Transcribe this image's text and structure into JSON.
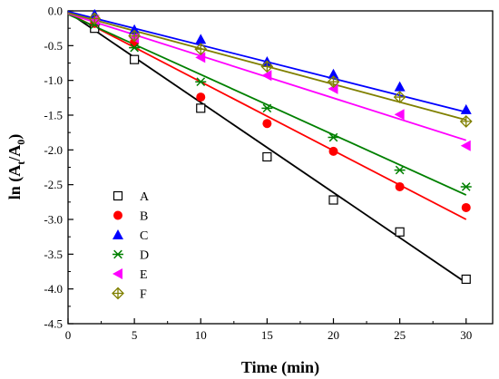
{
  "chart_data": {
    "type": "scatter",
    "xlabel": "Time (min)",
    "ylabel_parts": {
      "prefix": "ln (A",
      "sub1": "t",
      "mid": "/A",
      "sub2": "0",
      "suffix": ")"
    },
    "xlim": [
      0,
      32
    ],
    "ylim": [
      -4.5,
      0
    ],
    "xticks": [
      0,
      5,
      10,
      15,
      20,
      25,
      30
    ],
    "yticks": [
      0.0,
      -0.5,
      -1.0,
      -1.5,
      -2.0,
      -2.5,
      -3.0,
      -3.5,
      -4.0,
      -4.5
    ],
    "ytick_labels": [
      "0.0",
      "-0.5",
      "-1.0",
      "-1.5",
      "-2.0",
      "-2.5",
      "-3.0",
      "-3.5",
      "-4.0",
      "-4.5"
    ],
    "grid": false,
    "legend_position": "lower-left",
    "x": [
      0,
      2,
      5,
      10,
      15,
      20,
      25,
      30
    ],
    "series": [
      {
        "name": "A",
        "marker": "square-open",
        "color": "#000000",
        "values": [
          0,
          -0.25,
          -0.7,
          -1.4,
          -2.1,
          -2.72,
          -3.18,
          -3.86
        ],
        "fit": {
          "intercept": -0.02,
          "slope": -0.1297
        }
      },
      {
        "name": "B",
        "marker": "circle",
        "color": "#ff0000",
        "values": [
          0,
          -0.18,
          -0.45,
          -1.24,
          -1.62,
          -2.02,
          -2.53,
          -2.83
        ],
        "fit": {
          "intercept": -0.03,
          "slope": -0.099
        }
      },
      {
        "name": "C",
        "marker": "triangle-up",
        "color": "#0000ff",
        "values": [
          0,
          -0.05,
          -0.27,
          -0.41,
          -0.73,
          -0.91,
          -1.09,
          -1.42
        ],
        "fit": {
          "intercept": -0.01,
          "slope": -0.0482
        }
      },
      {
        "name": "D",
        "marker": "asterisk",
        "color": "#008000",
        "values": [
          0,
          -0.2,
          -0.53,
          -1.02,
          -1.4,
          -1.82,
          -2.29,
          -2.53
        ],
        "fit": {
          "intercept": -0.05,
          "slope": -0.0866
        }
      },
      {
        "name": "E",
        "marker": "triangle-left",
        "color": "#ff00ff",
        "values": [
          0,
          -0.13,
          -0.39,
          -0.67,
          -0.93,
          -1.12,
          -1.49,
          -1.94
        ],
        "fit": {
          "intercept": -0.04,
          "slope": -0.0607
        }
      },
      {
        "name": "F",
        "marker": "diamond-cross",
        "color": "#808000",
        "values": [
          0,
          -0.11,
          -0.36,
          -0.55,
          -0.8,
          -1.02,
          -1.24,
          -1.59
        ],
        "fit": {
          "intercept": -0.03,
          "slope": -0.0513
        }
      }
    ]
  }
}
